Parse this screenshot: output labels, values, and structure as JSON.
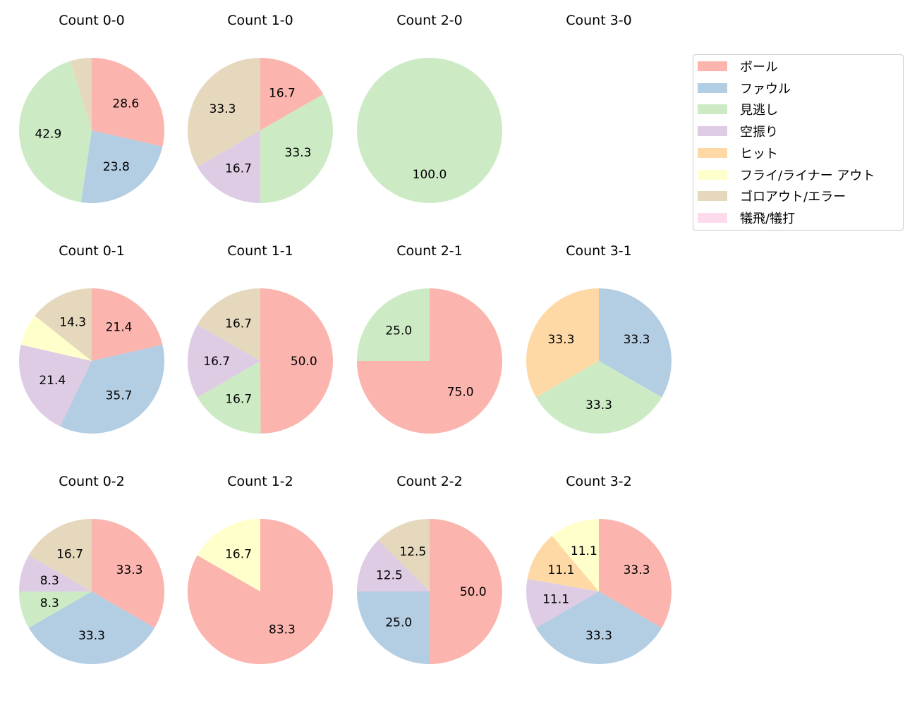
{
  "chart_data": {
    "type": "pie",
    "legend_position": "top-right",
    "categories": [
      "ボール",
      "ファウル",
      "見逃し",
      "空振り",
      "ヒット",
      "フライ/ライナー アウト",
      "ゴロアウト/エラー",
      "犠飛/犠打"
    ],
    "colors": [
      "#fbb4ae",
      "#b3cde3",
      "#ccebc5",
      "#decbe4",
      "#fed9a6",
      "#ffffcc",
      "#e5d8bd",
      "#fddaec"
    ],
    "charts": [
      {
        "title": "Count 0-0",
        "values": [
          28.6,
          23.8,
          42.9,
          0,
          0,
          0,
          4.8,
          0
        ]
      },
      {
        "title": "Count 1-0",
        "values": [
          16.7,
          0,
          33.3,
          16.7,
          0,
          0,
          33.3,
          0
        ]
      },
      {
        "title": "Count 2-0",
        "values": [
          0,
          0,
          100.0,
          0,
          0,
          0,
          0,
          0
        ]
      },
      {
        "title": "Count 3-0",
        "values": [
          0,
          0,
          0,
          0,
          0,
          0,
          0,
          0
        ]
      },
      {
        "title": "Count 0-1",
        "values": [
          21.4,
          35.7,
          0,
          21.4,
          0,
          7.1,
          14.3,
          0
        ]
      },
      {
        "title": "Count 1-1",
        "values": [
          50.0,
          0,
          16.7,
          16.7,
          0,
          0,
          16.7,
          0
        ]
      },
      {
        "title": "Count 2-1",
        "values": [
          75.0,
          0,
          25.0,
          0,
          0,
          0,
          0,
          0
        ]
      },
      {
        "title": "Count 3-1",
        "values": [
          0,
          33.3,
          33.3,
          0,
          33.3,
          0,
          0,
          0
        ]
      },
      {
        "title": "Count 0-2",
        "values": [
          33.3,
          33.3,
          8.3,
          8.3,
          0,
          0,
          16.7,
          0
        ]
      },
      {
        "title": "Count 1-2",
        "values": [
          83.3,
          0,
          0,
          0,
          0,
          16.7,
          0,
          0
        ]
      },
      {
        "title": "Count 2-2",
        "values": [
          50.0,
          25.0,
          0,
          12.5,
          0,
          0,
          12.5,
          0
        ]
      },
      {
        "title": "Count 3-2",
        "values": [
          33.3,
          33.3,
          0,
          11.1,
          11.1,
          11.1,
          0,
          0
        ]
      }
    ]
  }
}
